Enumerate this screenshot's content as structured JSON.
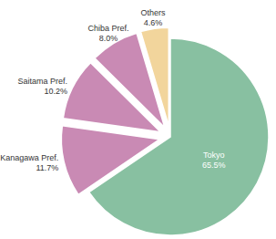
{
  "chart_data": {
    "type": "pie",
    "categories": [
      "Tokyo",
      "Kanagawa Pref.",
      "Saitama Pref.",
      "Chiba Pref.",
      "Others"
    ],
    "values": [
      65.5,
      11.7,
      10.2,
      8.0,
      4.6
    ],
    "value_labels": [
      "65.5%",
      "11.7%",
      "10.2%",
      "8.0%",
      "4.6%"
    ],
    "colors": [
      "#88c0a1",
      "#c98ab4",
      "#c98ab4",
      "#c98ab4",
      "#f2d59c"
    ],
    "data_labels": true
  }
}
